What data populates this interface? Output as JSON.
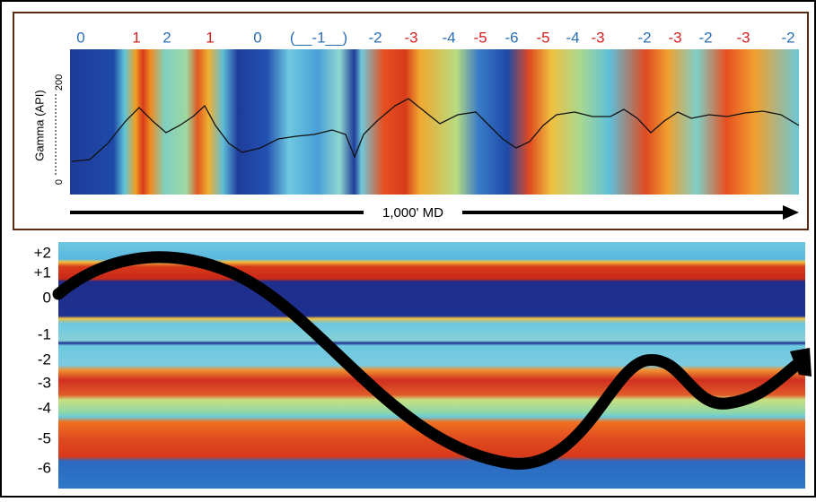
{
  "top_panel": {
    "zone_labels": [
      {
        "text": "0",
        "color": "#2a6fb5"
      },
      {
        "text": "1",
        "color": "#d62020"
      },
      {
        "text": "2",
        "color": "#2a6fb5"
      },
      {
        "text": "1",
        "color": "#d62020"
      },
      {
        "text": "0",
        "color": "#2a6fb5"
      },
      {
        "text": "(__-1__)",
        "color": "#2a6fb5"
      },
      {
        "text": "-2",
        "color": "#2a6fb5"
      },
      {
        "text": "-3",
        "color": "#d62020"
      },
      {
        "text": "-4",
        "color": "#2a6fb5"
      },
      {
        "text": "-5",
        "color": "#d62020"
      },
      {
        "text": "-6",
        "color": "#2a6fb5"
      },
      {
        "text": "-5",
        "color": "#d62020"
      },
      {
        "text": "-4",
        "color": "#2a6fb5"
      },
      {
        "text": "-3",
        "color": "#d62020"
      },
      {
        "text": "-2",
        "color": "#2a6fb5"
      },
      {
        "text": "-3",
        "color": "#d62020"
      },
      {
        "text": "-2",
        "color": "#2a6fb5"
      },
      {
        "text": "-3",
        "color": "#d62020"
      },
      {
        "text": "-2",
        "color": "#2a6fb5"
      }
    ],
    "y_axis_title": "Gamma (API)",
    "y_ticks": [
      "200",
      "0"
    ],
    "arrow_label": "1,000' MD"
  },
  "bottom_panel": {
    "layer_labels": [
      "+2",
      "+1",
      "0",
      "-1",
      "-2",
      "-3",
      "-4",
      "-5",
      "-6"
    ]
  }
}
